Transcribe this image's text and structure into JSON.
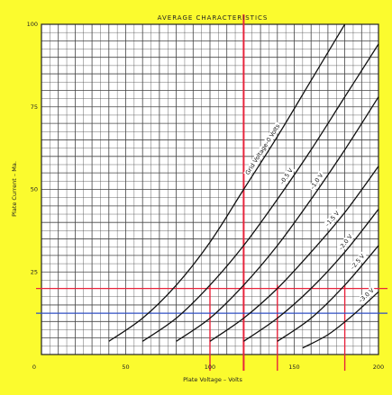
{
  "chart_data": {
    "type": "line",
    "title": "AVERAGE CHARACTERISTICS",
    "xlabel": "Plate Voltage – Volts",
    "ylabel": "Plate Current – Ma.",
    "xlim": [
      0,
      200
    ],
    "ylim": [
      0,
      100
    ],
    "x_ticks": [
      "0",
      "50",
      "100",
      "150",
      "200"
    ],
    "y_ticks": [
      "100",
      "75",
      "50",
      "25"
    ],
    "grid": true,
    "colors": {
      "page": "#fbfb2e",
      "plot": "#ffffff",
      "grid": "#444444",
      "curve": "#111111",
      "red_line": "#e8243c",
      "blue_line": "#2f4fc4"
    },
    "series": [
      {
        "name": "Grid Voltage–0 Volts",
        "x": [
          40,
          60,
          80,
          100,
          120,
          140,
          160,
          180
        ],
        "y": [
          4,
          11,
          21,
          34,
          50,
          66,
          83,
          100
        ]
      },
      {
        "name": "–0.5 V",
        "x": [
          60,
          80,
          100,
          120,
          140,
          160,
          180,
          200
        ],
        "y": [
          4,
          11,
          21,
          33,
          47,
          62,
          78,
          94
        ]
      },
      {
        "name": "–1.0 V",
        "x": [
          80,
          100,
          120,
          140,
          160,
          180,
          200
        ],
        "y": [
          4,
          11,
          21,
          33,
          47,
          62,
          78
        ]
      },
      {
        "name": "–1.5 V",
        "x": [
          100,
          120,
          140,
          160,
          180,
          200
        ],
        "y": [
          4,
          11,
          20,
          31,
          43,
          57
        ]
      },
      {
        "name": "–2.0 V",
        "x": [
          120,
          140,
          160,
          180,
          200
        ],
        "y": [
          4,
          11,
          20,
          31,
          44
        ]
      },
      {
        "name": "–2.5 V",
        "x": [
          140,
          160,
          180,
          200
        ],
        "y": [
          4,
          11,
          21,
          33
        ]
      },
      {
        "name": "–3.0 V",
        "x": [
          155,
          170,
          185,
          200
        ],
        "y": [
          2,
          6,
          12,
          19
        ]
      }
    ],
    "reference_lines": {
      "vertical_x": [
        100,
        120,
        140,
        180
      ],
      "horizontal_red_y": 20,
      "horizontal_blue_y": 12.5
    }
  }
}
